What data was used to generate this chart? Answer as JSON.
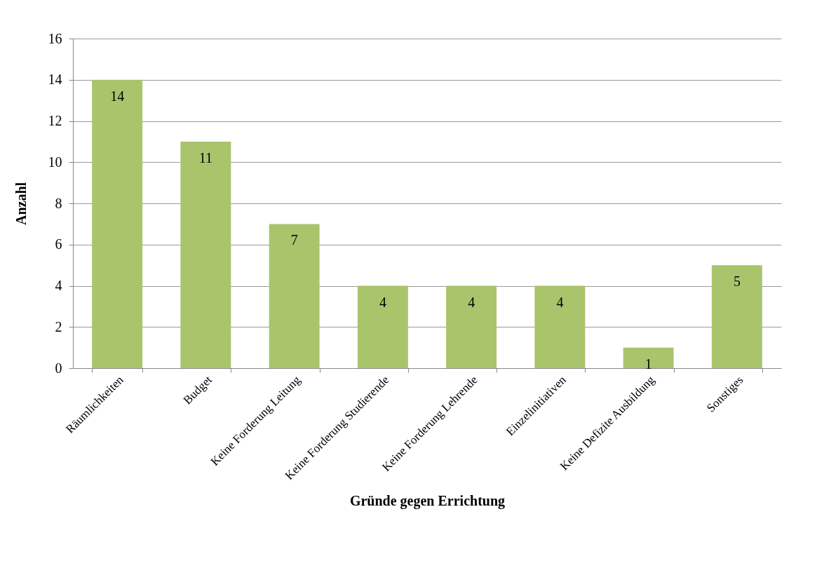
{
  "chart_data": {
    "type": "bar",
    "xlabel": "Gründe gegen Errichtung",
    "ylabel": "Anzahl",
    "categories": [
      "Räumlichkeiten",
      "Budget",
      "Keine Forderung Leitung",
      "Keine Forderung Studierende",
      "Keine Forderung Lehrende",
      "Einzelinitiativen",
      "Keine Defizite Ausbildung",
      "Sonstiges"
    ],
    "values": [
      14,
      11,
      7,
      4,
      4,
      4,
      1,
      5
    ],
    "color": "#aac46c",
    "ylim": [
      0,
      16
    ],
    "yticks": [
      0,
      2,
      4,
      6,
      8,
      10,
      12,
      14,
      16
    ],
    "grid": "y",
    "data_labels": true
  }
}
